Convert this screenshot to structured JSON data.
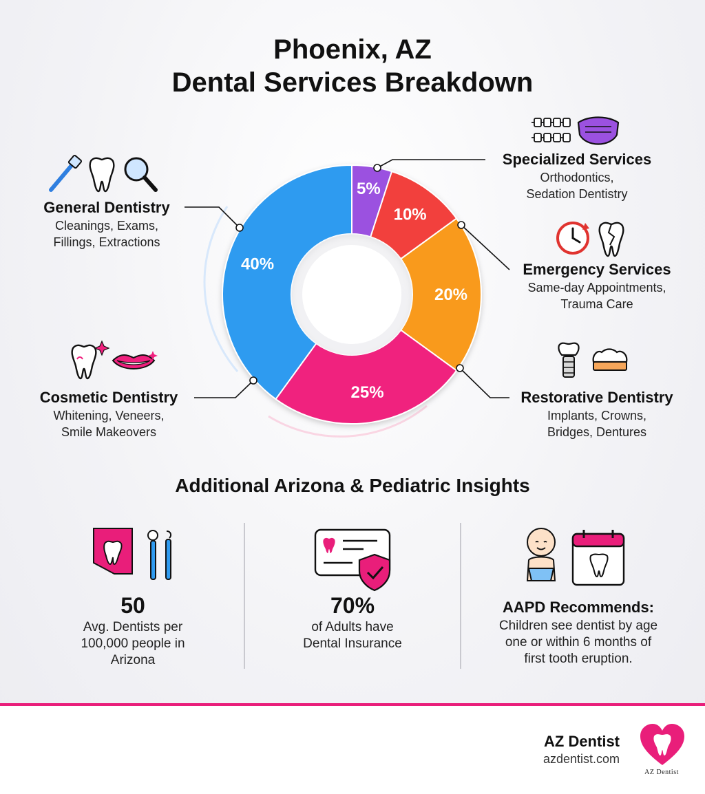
{
  "title": {
    "line1": "Phoenix, AZ",
    "line2": "Dental Services Breakdown"
  },
  "chart_data": {
    "type": "pie",
    "donut": true,
    "start_angle_deg": 0,
    "slices": [
      {
        "label": "Specialized Services",
        "value": 5,
        "display": "5%",
        "color": "#9b51e0"
      },
      {
        "label": "Emergency Services",
        "value": 10,
        "display": "10%",
        "color": "#f2413d"
      },
      {
        "label": "Restorative Dentistry",
        "value": 20,
        "display": "20%",
        "color": "#f99a1c"
      },
      {
        "label": "Cosmetic Dentistry",
        "value": 25,
        "display": "25%",
        "color": "#f0207e"
      },
      {
        "label": "General Dentistry",
        "value": 40,
        "display": "40%",
        "color": "#2f9bf0"
      }
    ]
  },
  "legend": {
    "general": {
      "title": "General Dentistry",
      "line1": "Cleanings, Exams,",
      "line2": "Fillings, Extractions"
    },
    "cosmetic": {
      "title": "Cosmetic Dentistry",
      "line1": "Whitening, Veneers,",
      "line2": "Smile Makeovers"
    },
    "specialized": {
      "title": "Specialized Services",
      "line1": "Orthodontics,",
      "line2": "Sedation Dentistry"
    },
    "emergency": {
      "title": "Emergency Services",
      "line1": "Same-day Appointments,",
      "line2": "Trauma Care"
    },
    "restorative": {
      "title": "Restorative Dentistry",
      "line1": "Implants, Crowns,",
      "line2": "Bridges, Dentures"
    }
  },
  "insights": {
    "title": "Additional Arizona & Pediatric Insights",
    "dentists": {
      "value": "50",
      "line1": "Avg. Dentists per",
      "line2": "100,000 people in",
      "line3": "Arizona"
    },
    "insurance": {
      "value": "70%",
      "line1": "of Adults have",
      "line2": "Dental Insurance"
    },
    "aapd": {
      "title": "AAPD Recommends:",
      "line1": "Children see dentist by age",
      "line2": "one or within 6 months of",
      "line3": "first tooth eruption."
    }
  },
  "footer": {
    "brand": "AZ Dentist",
    "url": "azdentist.com",
    "logo_text": "AZ Dentist"
  },
  "colors": {
    "accent": "#e91e7a",
    "purple": "#9b51e0",
    "red": "#f2413d",
    "orange": "#f99a1c",
    "pink": "#f0207e",
    "blue": "#2f9bf0"
  },
  "icons": [
    "toothbrush-icon",
    "tooth-icon",
    "magnifier-icon",
    "braces-icon",
    "mask-icon",
    "clock-icon",
    "cracked-tooth-icon",
    "sparkle-tooth-icon",
    "lips-icon",
    "implant-icon",
    "crown-icon",
    "arizona-map-icon",
    "dental-tools-icon",
    "insurance-card-icon",
    "shield-check-icon",
    "baby-icon",
    "calendar-tooth-icon",
    "heart-tooth-logo"
  ]
}
